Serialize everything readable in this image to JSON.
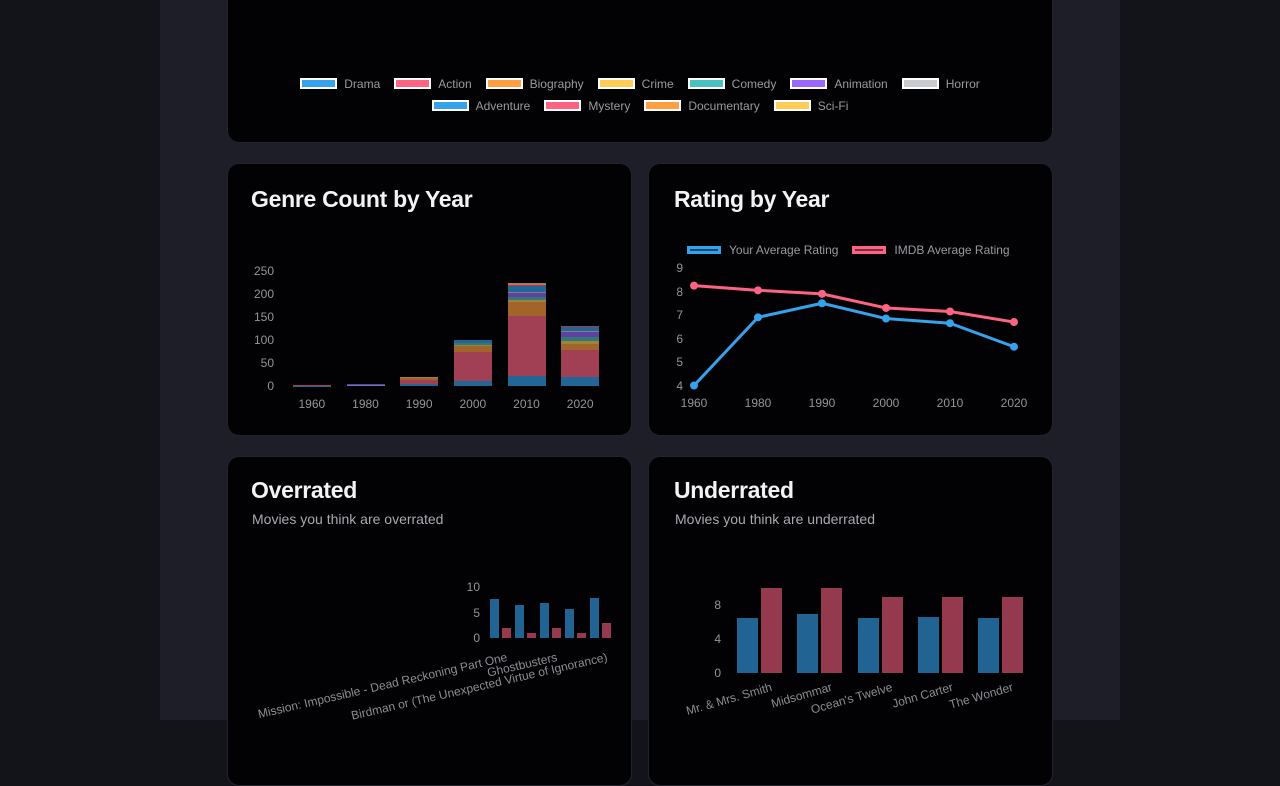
{
  "page": {
    "background": "#13131a",
    "column_background": "#1e1e28",
    "card_background": "#020204"
  },
  "legend_card": {
    "rows": [
      [
        {
          "label": "Drama",
          "color": "#36a2eb"
        },
        {
          "label": "Action",
          "color": "#ff6384"
        },
        {
          "label": "Biography",
          "color": "#ff9f40"
        },
        {
          "label": "Crime",
          "color": "#ffcd56"
        },
        {
          "label": "Comedy",
          "color": "#4bc0c0"
        },
        {
          "label": "Animation",
          "color": "#9966ff"
        },
        {
          "label": "Horror",
          "color": "#c9cbcf"
        }
      ],
      [
        {
          "label": "Adventure",
          "color": "#36a2eb"
        },
        {
          "label": "Mystery",
          "color": "#ff6384"
        },
        {
          "label": "Documentary",
          "color": "#ff9f40"
        },
        {
          "label": "Sci-Fi",
          "color": "#ffcd56"
        }
      ]
    ]
  },
  "cards": {
    "genre_count": {
      "title": "Genre Count by Year",
      "chart_data": {
        "type": "bar",
        "stacked": true,
        "grid": false,
        "categories": [
          "1960",
          "1980",
          "1990",
          "2000",
          "2010",
          "2020"
        ],
        "ylim": [
          0,
          250
        ],
        "yticks": [
          0,
          50,
          100,
          150,
          200,
          250
        ],
        "series": [
          {
            "name": "Drama",
            "color": "#36a2eb",
            "values": [
              1,
              2,
              4,
              10,
              22,
              20
            ]
          },
          {
            "name": "Action",
            "color": "#ff6384",
            "values": [
              1,
              1,
              10,
              65,
              130,
              58
            ]
          },
          {
            "name": "Biography",
            "color": "#ff9f40",
            "values": [
              0,
              0,
              4,
              13,
              30,
              14
            ]
          },
          {
            "name": "Crime",
            "color": "#ffcd56",
            "values": [
              0,
              0,
              2,
              2,
              6,
              5
            ]
          },
          {
            "name": "Comedy",
            "color": "#4bc0c0",
            "values": [
              0,
              0,
              0,
              3,
              6,
              10
            ]
          },
          {
            "name": "Animation",
            "color": "#9966ff",
            "values": [
              0,
              2,
              0,
              0,
              8,
              10
            ]
          },
          {
            "name": "Horror",
            "color": "#c9cbcf",
            "values": [
              0,
              0,
              0,
              0,
              3,
              2
            ]
          },
          {
            "name": "Adventure",
            "color": "#36a2eb",
            "values": [
              0,
              0,
              0,
              7,
              12,
              9
            ]
          },
          {
            "name": "Mystery",
            "color": "#ff6384",
            "values": [
              0,
              0,
              0,
              0,
              4,
              2
            ]
          },
          {
            "name": "Documentary",
            "color": "#ff9f40",
            "values": [
              0,
              0,
              0,
              0,
              2,
              0
            ]
          },
          {
            "name": "Sci-Fi",
            "color": "#ffcd56",
            "values": [
              0,
              0,
              0,
              0,
              2,
              0
            ]
          }
        ]
      }
    },
    "rating": {
      "title": "Rating by Year",
      "chart_data": {
        "type": "line",
        "grid": false,
        "legend_position": "top",
        "categories": [
          "1960",
          "1980",
          "1990",
          "2000",
          "2010",
          "2020"
        ],
        "ylim": [
          4,
          9
        ],
        "yticks": [
          4,
          5,
          6,
          7,
          8,
          9
        ],
        "series": [
          {
            "name": "Your Average Rating",
            "color": "#36a2eb",
            "values": [
              4.0,
              6.9,
              7.5,
              6.85,
              6.65,
              5.65
            ]
          },
          {
            "name": "IMDB Average Rating",
            "color": "#ff6384",
            "values": [
              8.25,
              8.05,
              7.9,
              7.3,
              7.15,
              6.7
            ]
          }
        ]
      }
    },
    "overrated": {
      "title": "Overrated",
      "subtitle": "Movies you think are overrated",
      "chart_data": {
        "type": "bar",
        "grouped": true,
        "grid": false,
        "categories": [
          "Mission: Impossible - Dead Reckoning Part One",
          "",
          "Ghostbusters",
          "",
          "Birdman or (The Unexpected Virtue of Ignorance)"
        ],
        "ylim": [
          0,
          10
        ],
        "yticks": [
          0,
          5,
          10
        ],
        "series": [
          {
            "color": "#36a2eb",
            "values": [
              7.7,
              6.5,
              6.9,
              5.6,
              7.8
            ]
          },
          {
            "color": "#ff6384",
            "values": [
              2,
              1,
              2,
              1,
              2.9
            ]
          }
        ]
      }
    },
    "underrated": {
      "title": "Underrated",
      "subtitle": "Movies you think are underrated",
      "chart_data": {
        "type": "bar",
        "grouped": true,
        "grid": false,
        "categories": [
          "Mr. & Mrs. Smith",
          "Midsommar",
          "Ocean's Twelve",
          "John Carter",
          "The Wonder"
        ],
        "ylim": [
          0,
          10
        ],
        "yticks": [
          0,
          4,
          8
        ],
        "series": [
          {
            "color": "#36a2eb",
            "values": [
              6.5,
              7.0,
              6.5,
              6.6,
              6.5
            ]
          },
          {
            "color": "#ff6384",
            "values": [
              10,
              10,
              9,
              9,
              9
            ]
          }
        ]
      }
    }
  }
}
